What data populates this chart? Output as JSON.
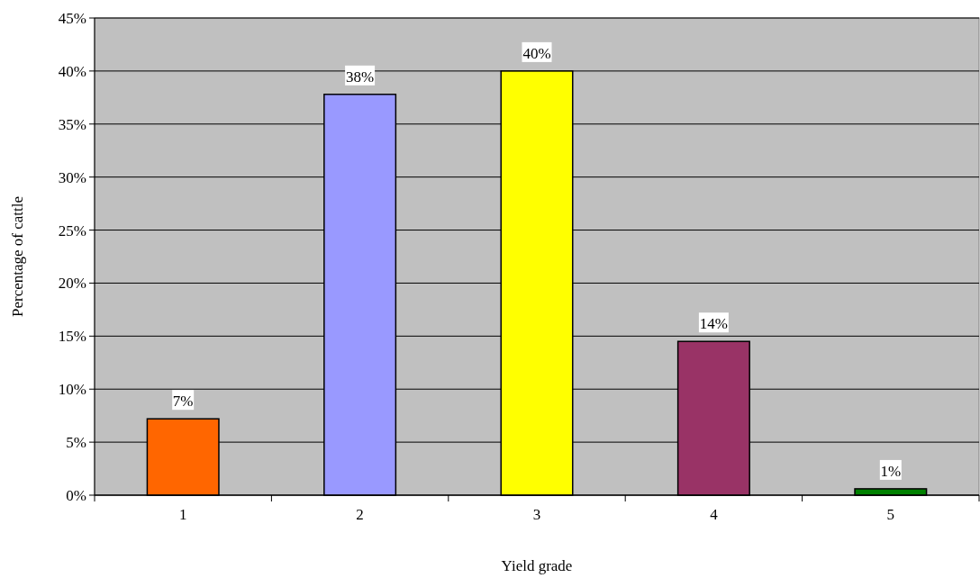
{
  "chart_data": {
    "type": "bar",
    "xlabel": "Yield grade",
    "ylabel": "Percentage of cattle",
    "categories": [
      "1",
      "2",
      "3",
      "4",
      "5"
    ],
    "values": [
      7.2,
      37.8,
      40,
      14.5,
      0.6
    ],
    "colors": [
      "#ff6600",
      "#9999ff",
      "#ffff00",
      "#993366",
      "#008000"
    ],
    "value_labels": [
      "7%",
      "38%",
      "40%",
      "14%",
      "1%"
    ],
    "ylim": [
      0,
      45
    ],
    "yticks": [
      {
        "value": 0,
        "label": "0%"
      },
      {
        "value": 5,
        "label": "5%"
      },
      {
        "value": 10,
        "label": "10%"
      },
      {
        "value": 15,
        "label": "15%"
      },
      {
        "value": 20,
        "label": "20%"
      },
      {
        "value": 25,
        "label": "25%"
      },
      {
        "value": 30,
        "label": "30%"
      },
      {
        "value": 35,
        "label": "35%"
      },
      {
        "value": 40,
        "label": "40%"
      },
      {
        "value": 45,
        "label": "45%"
      }
    ],
    "grid": "y"
  }
}
